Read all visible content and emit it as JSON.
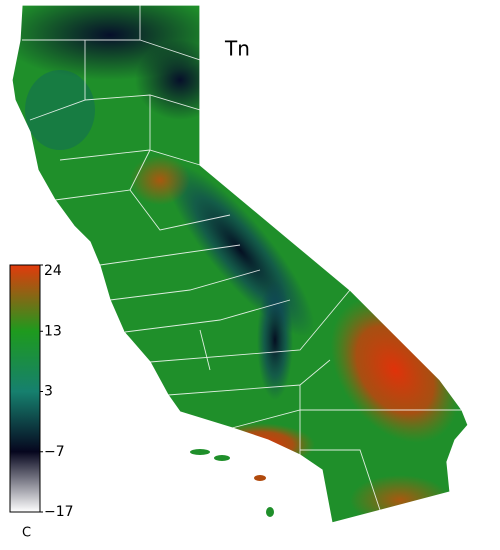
{
  "map": {
    "title": "Tn",
    "colorbar": {
      "unit": "C",
      "lim": [
        -17,
        24
      ],
      "ticks": [
        24,
        13,
        3,
        {
          "value": -7,
          "label": "−7"
        },
        {
          "value": -17,
          "label": "−17"
        }
      ],
      "colors": [
        "#e23a0c",
        "#1e9a1e",
        "#16806e",
        "#06061e",
        "#ffffff"
      ]
    }
  }
}
